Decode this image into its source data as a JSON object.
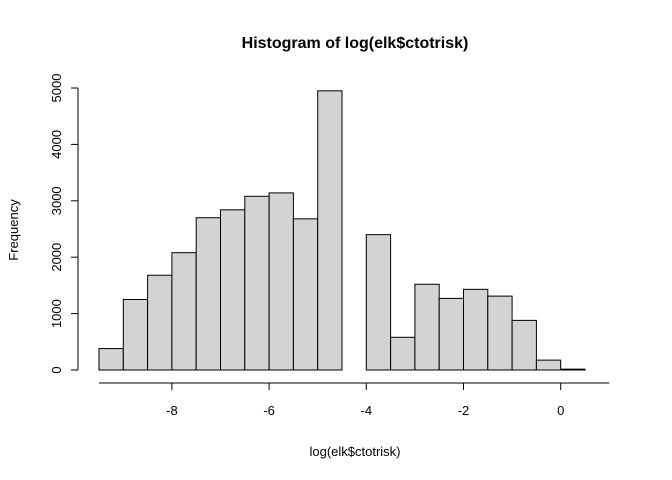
{
  "chart_data": {
    "type": "bar",
    "title": "Histogram of log(elk$ctotrisk)",
    "xlabel": "log(elk$ctotrisk)",
    "ylabel": "Frequency",
    "bin_edges": [
      -9.5,
      -9.0,
      -8.5,
      -8.0,
      -7.5,
      -7.0,
      -6.5,
      -6.0,
      -5.5,
      -5.0,
      -4.5,
      -4.0,
      -3.5,
      -3.0,
      -2.5,
      -2.0,
      -1.5,
      -1.0,
      -0.5,
      0.0,
      0.5
    ],
    "values": [
      380,
      1250,
      1680,
      2080,
      2700,
      2840,
      3080,
      3140,
      2680,
      4950,
      0,
      2400,
      580,
      1520,
      1270,
      1430,
      1310,
      880,
      175,
      15
    ],
    "xlim": [
      -9.5,
      1.0
    ],
    "ylim": [
      0,
      5000
    ],
    "x_ticks": [
      -8,
      -6,
      -4,
      -2,
      0
    ],
    "x_tick_labels": [
      "-8",
      "-6",
      "-4",
      "-2",
      "0"
    ],
    "y_ticks": [
      0,
      1000,
      2000,
      3000,
      4000,
      5000
    ],
    "y_tick_labels": [
      "0",
      "1000",
      "2000",
      "3000",
      "4000",
      "5000"
    ],
    "grid": false,
    "bar_color": "#d3d3d3"
  }
}
